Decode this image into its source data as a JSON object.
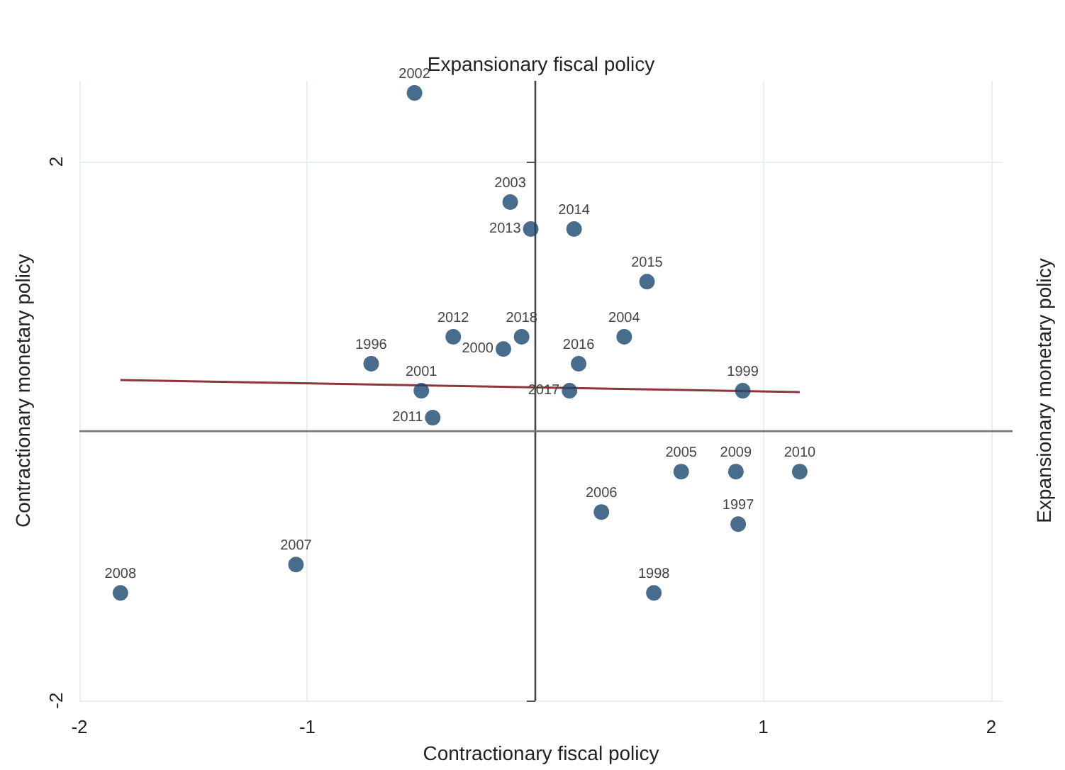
{
  "chart_data": {
    "type": "scatter",
    "xlabel": "Contractionary fiscal policy",
    "x2label": "Expansionary fiscal policy",
    "ylabel": "Contractionary monetary policy",
    "y2label": "Expansionary monetary policy",
    "xlim": [
      -2,
      2.05
    ],
    "xticks": [
      -2,
      -1,
      1,
      2
    ],
    "ylim": [
      -2,
      2.6
    ],
    "yticks": [
      -2,
      2
    ],
    "grid": true,
    "marker": "circle",
    "ref_lines": [
      {
        "axis": "x",
        "value": 0,
        "color": "#444444"
      },
      {
        "axis": "y",
        "value": 0,
        "color": "#777777"
      }
    ],
    "series": [
      {
        "color": "#1a476f",
        "x": [
          -0.53,
          -0.11,
          -0.02,
          0.17,
          0.49,
          -0.36,
          -0.06,
          -0.14,
          0.39,
          -0.72,
          0.19,
          -0.5,
          0.15,
          0.91,
          -0.45,
          0.64,
          0.88,
          1.16,
          0.29,
          0.89,
          -1.05,
          -1.82,
          0.52
        ],
        "values": [
          2.51,
          1.7,
          1.5,
          1.5,
          1.11,
          0.7,
          0.7,
          0.61,
          0.7,
          0.5,
          0.5,
          0.3,
          0.3,
          0.3,
          0.1,
          -0.3,
          -0.3,
          -0.3,
          -0.6,
          -0.69,
          -0.99,
          -1.2,
          -1.2
        ]
      },
      {
        "type": "line",
        "color": "#90353b",
        "marker": "none",
        "x": [
          -1.82,
          1.16
        ],
        "values": [
          0.38,
          0.29
        ]
      }
    ],
    "annotations": [
      {
        "text": "2002",
        "x": -0.53,
        "y": 2.51
      },
      {
        "text": "2003",
        "x": -0.11,
        "y": 1.7
      },
      {
        "text": "2013",
        "x": -0.02,
        "y": 1.5
      },
      {
        "text": "2014",
        "x": 0.17,
        "y": 1.5
      },
      {
        "text": "2015",
        "x": 0.49,
        "y": 1.11
      },
      {
        "text": "2012",
        "x": -0.36,
        "y": 0.7
      },
      {
        "text": "2018",
        "x": -0.06,
        "y": 0.7
      },
      {
        "text": "2000",
        "x": -0.14,
        "y": 0.61
      },
      {
        "text": "2004",
        "x": 0.39,
        "y": 0.7
      },
      {
        "text": "1996",
        "x": -0.72,
        "y": 0.5
      },
      {
        "text": "2016",
        "x": 0.19,
        "y": 0.5
      },
      {
        "text": "2001",
        "x": -0.5,
        "y": 0.3
      },
      {
        "text": "2017",
        "x": 0.15,
        "y": 0.3
      },
      {
        "text": "1999",
        "x": 0.91,
        "y": 0.3
      },
      {
        "text": "2011",
        "x": -0.45,
        "y": 0.1
      },
      {
        "text": "2005",
        "x": 0.64,
        "y": -0.3
      },
      {
        "text": "2009",
        "x": 0.88,
        "y": -0.3
      },
      {
        "text": "2010",
        "x": 1.16,
        "y": -0.3
      },
      {
        "text": "2006",
        "x": 0.29,
        "y": -0.6
      },
      {
        "text": "1997",
        "x": 0.89,
        "y": -0.69
      },
      {
        "text": "2007",
        "x": -1.05,
        "y": -0.99
      },
      {
        "text": "2008",
        "x": -1.82,
        "y": -1.2
      },
      {
        "text": "1998",
        "x": 0.52,
        "y": -1.2
      }
    ]
  }
}
